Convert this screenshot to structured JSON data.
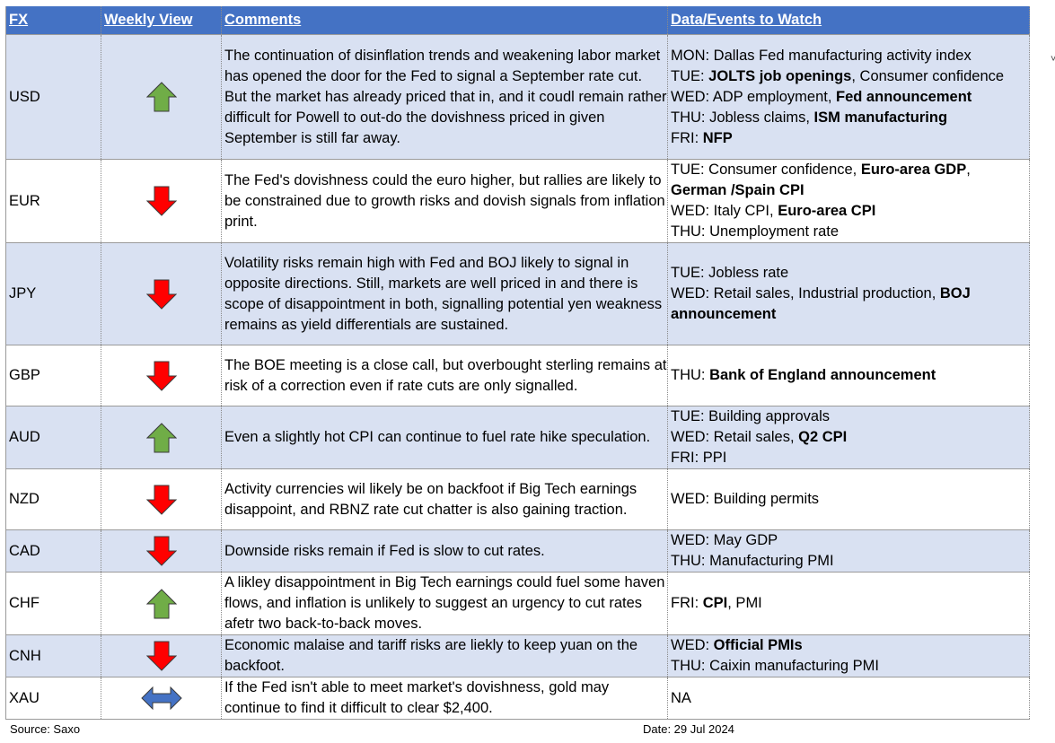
{
  "header": {
    "fx": "FX",
    "view": "Weekly View",
    "comments": "Comments",
    "events": "Data/Events to Watch"
  },
  "rows": [
    {
      "fx": "USD",
      "view": "up-arrow-icon",
      "comment": "The continuation of disinflation trends and weakening labor market has opened the door for the Fed to signal a September rate cut. But the market has already priced that in, and it coudl remain rather difficult for Powell to out-do the dovishness priced in given September is still far away.",
      "events": [
        [
          {
            "t": "MON: Dallas Fed manufacturing activity index",
            "b": false
          }
        ],
        [
          {
            "t": "TUE: ",
            "b": false
          },
          {
            "t": "JOLTS job openings",
            "b": true
          },
          {
            "t": ", Consumer confidence",
            "b": false
          }
        ],
        [
          {
            "t": "WED: ADP employment, ",
            "b": false
          },
          {
            "t": "Fed announcement",
            "b": true
          }
        ],
        [
          {
            "t": "THU: Jobless claims, ",
            "b": false
          },
          {
            "t": "ISM manufacturing",
            "b": true
          }
        ],
        [
          {
            "t": "FRI: ",
            "b": false
          },
          {
            "t": "NFP",
            "b": true
          }
        ]
      ]
    },
    {
      "fx": "EUR",
      "view": "down-arrow-icon",
      "comment": "The Fed's dovishness could the euro higher, but rallies are likely to be constrained due to growth risks and dovish signals from inflation print.",
      "events": [
        [
          {
            "t": "TUE: Consumer confidence, ",
            "b": false
          },
          {
            "t": "Euro-area GDP",
            "b": true
          },
          {
            "t": ",",
            "b": false
          }
        ],
        [
          {
            "t": "German /Spain CPI",
            "b": true
          }
        ],
        [
          {
            "t": "WED: Italy CPI, ",
            "b": false
          },
          {
            "t": "Euro-area CPI",
            "b": true
          }
        ],
        [
          {
            "t": "THU: Unemployment rate",
            "b": false
          }
        ]
      ]
    },
    {
      "fx": "JPY",
      "view": "down-arrow-icon",
      "comment": "Volatility risks remain high with Fed and BOJ likely to signal in opposite directions. Still, markets are well priced in and there is scope of disappointment in both, signalling potential yen weakness remains as yield differentials are sustained.",
      "events": [
        [
          {
            "t": "TUE: Jobless rate",
            "b": false
          }
        ],
        [
          {
            "t": "WED: Retail sales, Industrial production, ",
            "b": false
          },
          {
            "t": "BOJ",
            "b": true
          }
        ],
        [
          {
            "t": "announcement",
            "b": true
          }
        ]
      ]
    },
    {
      "fx": "GBP",
      "view": "down-arrow-icon",
      "comment": "The BOE meeting is a close call, but overbought sterling remains at risk of a correction even if rate cuts are only signalled.",
      "events": [
        [
          {
            "t": "THU: ",
            "b": false
          },
          {
            "t": "Bank of England announcement",
            "b": true
          }
        ]
      ]
    },
    {
      "fx": "AUD",
      "view": "up-arrow-icon",
      "comment": "Even a slightly hot CPI can continue to fuel rate hike speculation.",
      "events": [
        [
          {
            "t": "TUE: Building approvals",
            "b": false
          }
        ],
        [
          {
            "t": "WED: Retail sales, ",
            "b": false
          },
          {
            "t": "Q2 CPI",
            "b": true
          }
        ],
        [
          {
            "t": "FRI: PPI",
            "b": false
          }
        ]
      ]
    },
    {
      "fx": "NZD",
      "view": "down-arrow-icon",
      "comment": "Activity currencies wil likely be on backfoot if Big Tech earnings disappoint, and RBNZ rate cut chatter is also gaining traction.",
      "events": [
        [
          {
            "t": "WED: Building permits",
            "b": false
          }
        ]
      ]
    },
    {
      "fx": "CAD",
      "view": "down-arrow-icon",
      "comment": "Downside risks remain if Fed is slow to cut rates.",
      "events": [
        [
          {
            "t": "WED: May GDP",
            "b": false
          }
        ],
        [
          {
            "t": "THU: Manufacturing PMI",
            "b": false
          }
        ]
      ]
    },
    {
      "fx": "CHF",
      "view": "up-arrow-icon",
      "comment": "A likley disappointment in Big Tech earnings could fuel some haven flows, and inflation is unlikely to suggest an urgency to cut rates afetr two back-to-back moves.",
      "events": [
        [
          {
            "t": "FRI: ",
            "b": false
          },
          {
            "t": "CPI",
            "b": true
          },
          {
            "t": ", PMI",
            "b": false
          }
        ]
      ]
    },
    {
      "fx": "CNH",
      "view": "down-arrow-icon",
      "comment": "Economic malaise and tariff risks are liekly to keep yuan on the backfoot.",
      "events": [
        [
          {
            "t": "WED: ",
            "b": false
          },
          {
            "t": "Official PMIs",
            "b": true
          }
        ],
        [
          {
            "t": "THU: Caixin manufacturing PMI",
            "b": false
          }
        ]
      ]
    },
    {
      "fx": "XAU",
      "view": "left-right-arrow-icon",
      "comment": "If the Fed isn't able to meet market's dovishness, gold may continue to find it difficult to clear $2,400.",
      "events": [
        [
          {
            "t": "NA",
            "b": false
          }
        ]
      ]
    }
  ],
  "footer": {
    "source": "Source: Saxo",
    "date": "Date:  29 Jul 2024"
  },
  "colors": {
    "header_bg": "#4472c4",
    "alt_row_bg": "#d9e1f2",
    "up_arrow": "#70ad47",
    "down_arrow": "#ff0000",
    "sideways_arrow": "#4472c4"
  }
}
